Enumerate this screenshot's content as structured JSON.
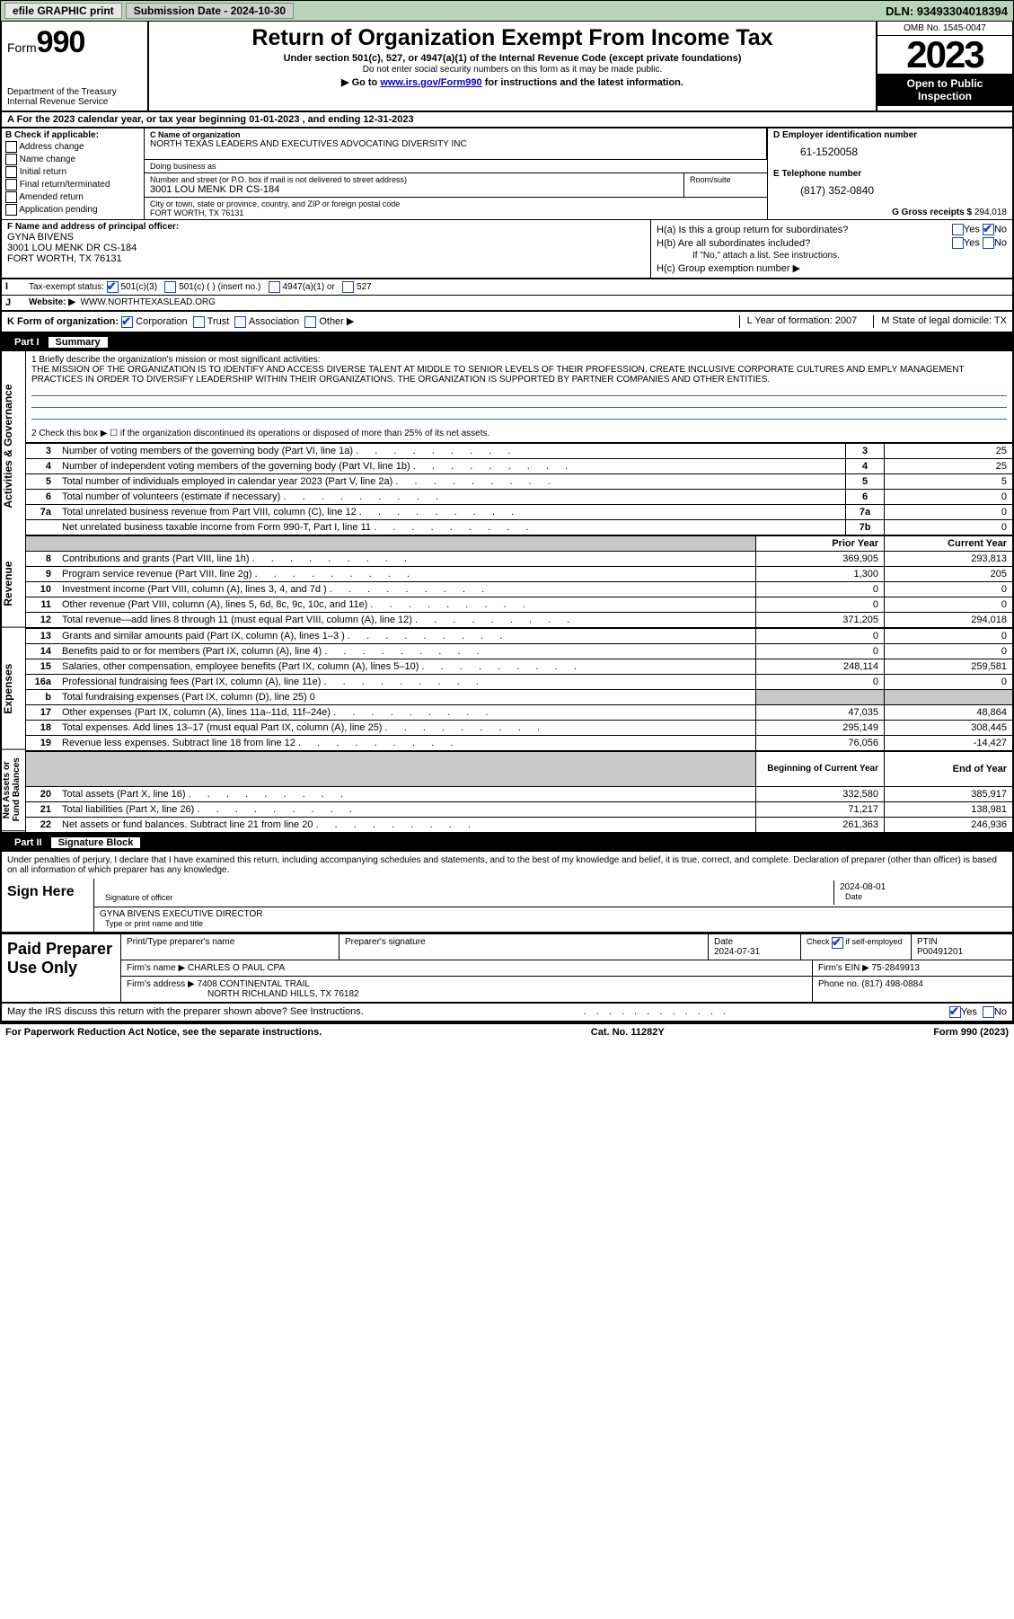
{
  "topbar": {
    "efile_label": "efile GRAPHIC print",
    "submission_label": "Submission Date - 2024-10-30",
    "dln": "DLN: 93493304018394"
  },
  "header": {
    "form_prefix": "Form",
    "form_number": "990",
    "title": "Return of Organization Exempt From Income Tax",
    "subtitle": "Under section 501(c), 527, or 4947(a)(1) of the Internal Revenue Code (except private foundations)",
    "nosocial": "Do not enter social security numbers on this form as it may be made public.",
    "goto_prefix": "Go to ",
    "goto_link": "www.irs.gov/Form990",
    "goto_suffix": " for instructions and the latest information.",
    "dept": "Department of the Treasury",
    "irs": "Internal Revenue Service",
    "omb": "OMB No. 1545-0047",
    "year": "2023",
    "open_public_1": "Open to Public",
    "open_public_2": "Inspection"
  },
  "row_a": "A For the 2023 calendar year, or tax year beginning 01-01-2023    , and ending 12-31-2023",
  "section_b": {
    "label": "B Check if applicable:",
    "items": [
      "Address change",
      "Name change",
      "Initial return",
      "Final return/terminated",
      "Amended return",
      "Application pending"
    ]
  },
  "section_c": {
    "name_label": "C Name of organization",
    "name": "NORTH TEXAS LEADERS AND EXECUTIVES ADVOCATING DIVERSITY INC",
    "dba_label": "Doing business as",
    "street_label": "Number and street (or P.O. box if mail is not delivered to street address)",
    "street": "3001 LOU MENK DR CS-184",
    "room_label": "Room/suite",
    "city_label": "City or town, state or province, country, and ZIP or foreign postal code",
    "city": "FORT WORTH, TX  76131"
  },
  "section_d": {
    "ein_label": "D Employer identification number",
    "ein": "61-1520058",
    "phone_label": "E Telephone number",
    "phone": "(817) 352-0840",
    "gross_label": "G Gross receipts $",
    "gross": "294,018"
  },
  "section_f": {
    "label": "F Name and address of principal officer:",
    "name": "GYNA BIVENS",
    "addr1": "3001 LOU MENK DR CS-184",
    "addr2": "FORT WORTH, TX  76131"
  },
  "section_h": {
    "ha": "H(a)  Is this a group return for subordinates?",
    "hb": "H(b)  Are all subordinates included?",
    "hb_note": "If \"No,\" attach a list. See instructions.",
    "hc": "H(c)  Group exemption number ▶",
    "yes": "Yes",
    "no": "No"
  },
  "row_i": {
    "label": "Tax-exempt status:",
    "opts": [
      "501(c)(3)",
      "501(c) (  ) (insert no.)",
      "4947(a)(1) or",
      "527"
    ]
  },
  "row_j": {
    "label": "Website: ▶",
    "val": "WWW.NORTHTEXASLEAD.ORG"
  },
  "row_k": {
    "label": "K Form of organization:",
    "opts": [
      "Corporation",
      "Trust",
      "Association",
      "Other ▶"
    ],
    "l": "L Year of formation: 2007",
    "m": "M State of legal domicile: TX"
  },
  "part1": {
    "num": "Part I",
    "title": "Summary"
  },
  "mission": {
    "label": "1   Briefly describe the organization's mission or most significant activities:",
    "text": "THE MISSION OF THE ORGANIZATION IS TO IDENTIFY AND ACCESS DIVERSE TALENT AT MIDDLE TO SENIOR LEVELS OF THEIR PROFESSION, CREATE INCLUSIVE CORPORATE CULTURES AND EMPLY MANAGEMENT PRACTICES IN ORDER TO DIVERSIFY LEADERSHIP WITHIN THEIR ORGANIZATIONS. THE ORGANIZATION IS SUPPORTED BY PARTNER COMPANIES AND OTHER ENTITIES."
  },
  "line2": "2    Check this box ▶ ☐ if the organization discontinued its operations or disposed of more than 25% of its net assets.",
  "sidebar": {
    "gov": "Activities & Governance",
    "rev": "Revenue",
    "exp": "Expenses",
    "net": "Net Assets or Fund Balances"
  },
  "gov_rows": [
    {
      "n": "3",
      "t": "Number of voting members of the governing body (Part VI, line 1a)",
      "box": "3",
      "v": "25"
    },
    {
      "n": "4",
      "t": "Number of independent voting members of the governing body (Part VI, line 1b)",
      "box": "4",
      "v": "25"
    },
    {
      "n": "5",
      "t": "Total number of individuals employed in calendar year 2023 (Part V, line 2a)",
      "box": "5",
      "v": "5"
    },
    {
      "n": "6",
      "t": "Total number of volunteers (estimate if necessary)",
      "box": "6",
      "v": "0"
    },
    {
      "n": "7a",
      "t": "Total unrelated business revenue from Part VIII, column (C), line 12",
      "box": "7a",
      "v": "0"
    },
    {
      "n": "",
      "t": "Net unrelated business taxable income from Form 990-T, Part I, line 11",
      "box": "7b",
      "v": "0"
    }
  ],
  "col_hdrs": {
    "prior": "Prior Year",
    "current": "Current Year",
    "begin": "Beginning of Current Year",
    "end": "End of Year"
  },
  "rev_rows": [
    {
      "n": "8",
      "t": "Contributions and grants (Part VIII, line 1h)",
      "p": "369,905",
      "c": "293,813"
    },
    {
      "n": "9",
      "t": "Program service revenue (Part VIII, line 2g)",
      "p": "1,300",
      "c": "205"
    },
    {
      "n": "10",
      "t": "Investment income (Part VIII, column (A), lines 3, 4, and 7d )",
      "p": "0",
      "c": "0"
    },
    {
      "n": "11",
      "t": "Other revenue (Part VIII, column (A), lines 5, 6d, 8c, 9c, 10c, and 11e)",
      "p": "0",
      "c": "0"
    },
    {
      "n": "12",
      "t": "Total revenue—add lines 8 through 11 (must equal Part VIII, column (A), line 12)",
      "p": "371,205",
      "c": "294,018"
    }
  ],
  "exp_rows": [
    {
      "n": "13",
      "t": "Grants and similar amounts paid (Part IX, column (A), lines 1–3 )",
      "p": "0",
      "c": "0"
    },
    {
      "n": "14",
      "t": "Benefits paid to or for members (Part IX, column (A), line 4)",
      "p": "0",
      "c": "0"
    },
    {
      "n": "15",
      "t": "Salaries, other compensation, employee benefits (Part IX, column (A), lines 5–10)",
      "p": "248,114",
      "c": "259,581"
    },
    {
      "n": "16a",
      "t": "Professional fundraising fees (Part IX, column (A), line 11e)",
      "p": "0",
      "c": "0"
    },
    {
      "n": "b",
      "t": "Total fundraising expenses (Part IX, column (D), line 25) 0",
      "p": "",
      "c": "",
      "grey": true
    },
    {
      "n": "17",
      "t": "Other expenses (Part IX, column (A), lines 11a–11d, 11f–24e)",
      "p": "47,035",
      "c": "48,864"
    },
    {
      "n": "18",
      "t": "Total expenses. Add lines 13–17 (must equal Part IX, column (A), line 25)",
      "p": "295,149",
      "c": "308,445"
    },
    {
      "n": "19",
      "t": "Revenue less expenses. Subtract line 18 from line 12",
      "p": "76,056",
      "c": "-14,427"
    }
  ],
  "net_rows": [
    {
      "n": "20",
      "t": "Total assets (Part X, line 16)",
      "p": "332,580",
      "c": "385,917"
    },
    {
      "n": "21",
      "t": "Total liabilities (Part X, line 26)",
      "p": "71,217",
      "c": "138,981"
    },
    {
      "n": "22",
      "t": "Net assets or fund balances. Subtract line 21 from line 20",
      "p": "261,363",
      "c": "246,936"
    }
  ],
  "part2": {
    "num": "Part II",
    "title": "Signature Block"
  },
  "perjury": "Under penalties of perjury, I declare that I have examined this return, including accompanying schedules and statements, and to the best of my knowledge and belief, it is true, correct, and complete. Declaration of preparer (other than officer) is based on all information of which preparer has any knowledge.",
  "sign": {
    "here": "Sign Here",
    "sig_label": "Signature of officer",
    "name": "GYNA BIVENS  EXECUTIVE DIRECTOR",
    "name_label": "Type or print name and title",
    "date": "2024-08-01",
    "date_label": "Date"
  },
  "prep": {
    "label": "Paid Preparer Use Only",
    "hdr": [
      "Print/Type preparer's name",
      "Preparer's signature",
      "Date",
      "",
      "PTIN"
    ],
    "date": "2024-07-31",
    "check_label": "Check ☑ if self-employed",
    "ptin": "P00491201",
    "firm_name_label": "Firm's name    ▶",
    "firm_name": "CHARLES O PAUL CPA",
    "firm_ein_label": "Firm's EIN ▶",
    "firm_ein": "75-2849913",
    "firm_addr_label": "Firm's address ▶",
    "firm_addr1": "7408 CONTINENTAL TRAIL",
    "firm_addr2": "NORTH RICHLAND HILLS, TX  76182",
    "phone_label": "Phone no.",
    "phone": "(817) 498-0884"
  },
  "discuss": "May the IRS discuss this return with the preparer shown above? See Instructions.",
  "footer": {
    "paperwork": "For Paperwork Reduction Act Notice, see the separate instructions.",
    "cat": "Cat. No. 11282Y",
    "form": "Form 990 (2023)"
  }
}
